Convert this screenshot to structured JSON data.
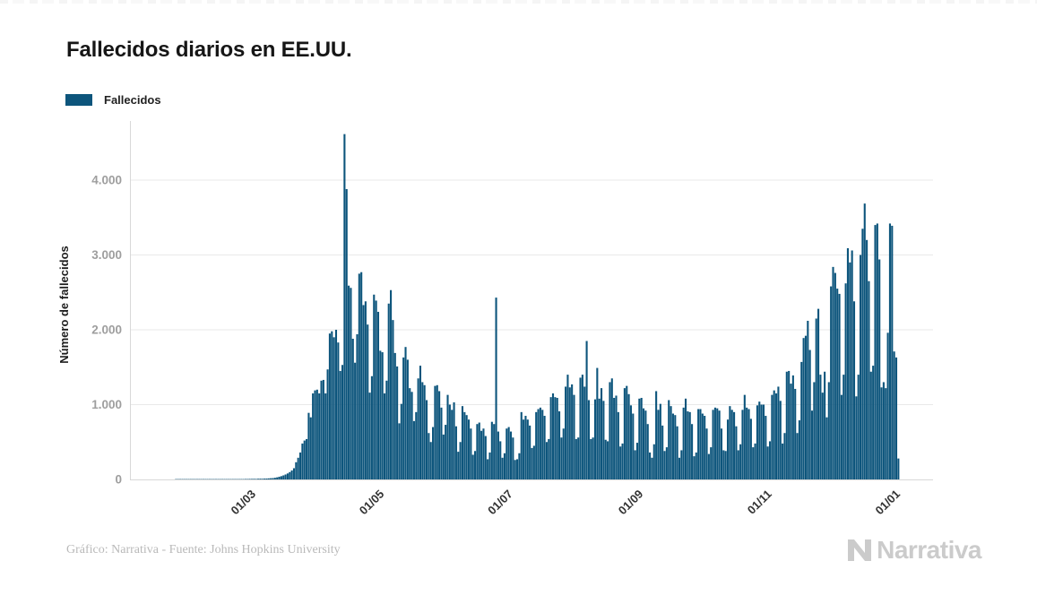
{
  "header": {
    "title": "Fallecidos diarios en EE.UU."
  },
  "legend": {
    "items": [
      {
        "label": "Fallecidos",
        "color": "#0d557c"
      }
    ]
  },
  "footer": {
    "credit": "Gráfico: Narrativa - Fuente: Johns Hopkins University",
    "logo_text": "Narrativa",
    "logo_icon": "narrativa-n-icon",
    "logo_color": "#cbcbcb"
  },
  "colors": {
    "bar": "#0d557c",
    "grid": "#e9e9e9",
    "axis": "#d8d8d8",
    "y_tick_label": "#9e9e9e",
    "x_tick_label": "#333333",
    "title": "#161616"
  },
  "chart_data": {
    "type": "bar",
    "title": "Fallecidos diarios en EE.UU.",
    "series_name": "Fallecidos",
    "bar_color": "#0d557c",
    "xlabel": "",
    "ylabel": "Número de fallecidos",
    "ylim": [
      0,
      4790
    ],
    "grid": true,
    "legend_position": "top-left",
    "y_ticks": [
      "0",
      "1.000",
      "2.000",
      "3.000",
      "4.000"
    ],
    "y_tick_values": [
      0,
      1000,
      2000,
      3000,
      4000
    ],
    "x_tick_labels": [
      "01/03",
      "01/05",
      "01/07",
      "01/09",
      "01/11",
      "01/01"
    ],
    "x_tick_day_index": [
      36,
      97,
      158,
      220,
      281,
      342
    ],
    "start_date": "2020-01-25",
    "values": [
      1,
      1,
      1,
      2,
      1,
      1,
      2,
      2,
      1,
      2,
      2,
      3,
      2,
      2,
      3,
      2,
      3,
      3,
      2,
      3,
      4,
      3,
      3,
      4,
      3,
      4,
      4,
      3,
      4,
      5,
      4,
      5,
      5,
      6,
      6,
      7,
      7,
      8,
      7,
      9,
      10,
      9,
      11,
      12,
      14,
      16,
      18,
      22,
      28,
      36,
      44,
      54,
      66,
      80,
      98,
      120,
      150,
      230,
      290,
      360,
      480,
      520,
      540,
      890,
      830,
      1150,
      1190,
      1200,
      1150,
      1320,
      1330,
      1150,
      1470,
      1950,
      1980,
      1900,
      2000,
      1830,
      1450,
      1530,
      4615,
      3880,
      2590,
      2560,
      1880,
      1560,
      1940,
      2750,
      2770,
      2330,
      2380,
      2070,
      1160,
      1380,
      2470,
      2390,
      2240,
      1720,
      1700,
      1150,
      1320,
      2350,
      2530,
      2130,
      1690,
      1510,
      750,
      1010,
      1630,
      1770,
      1600,
      1220,
      1170,
      780,
      900,
      1350,
      1520,
      1300,
      1260,
      1060,
      620,
      500,
      700,
      1250,
      1260,
      1180,
      960,
      600,
      730,
      1130,
      1000,
      930,
      1030,
      710,
      370,
      500,
      980,
      900,
      860,
      800,
      680,
      330,
      380,
      740,
      760,
      650,
      680,
      580,
      270,
      360,
      770,
      740,
      2430,
      640,
      510,
      290,
      350,
      680,
      700,
      640,
      560,
      260,
      270,
      350,
      900,
      800,
      850,
      800,
      720,
      420,
      450,
      900,
      940,
      960,
      930,
      850,
      500,
      540,
      1100,
      1150,
      1100,
      1090,
      910,
      560,
      680,
      1240,
      1400,
      1230,
      1270,
      1130,
      540,
      560,
      1360,
      1400,
      1240,
      1850,
      1060,
      540,
      560,
      1070,
      1490,
      1080,
      1220,
      1050,
      530,
      510,
      1300,
      1350,
      1090,
      1120,
      900,
      440,
      480,
      1220,
      1250,
      1140,
      990,
      880,
      390,
      490,
      1080,
      1090,
      950,
      920,
      740,
      360,
      290,
      470,
      1180,
      930,
      1010,
      720,
      380,
      430,
      1060,
      980,
      880,
      860,
      710,
      290,
      390,
      960,
      1080,
      910,
      900,
      740,
      310,
      360,
      940,
      940,
      880,
      850,
      680,
      340,
      430,
      930,
      960,
      950,
      920,
      680,
      390,
      380,
      800,
      980,
      930,
      900,
      710,
      390,
      470,
      930,
      1130,
      960,
      940,
      810,
      430,
      480,
      990,
      1040,
      1000,
      1000,
      850,
      440,
      510,
      1130,
      1190,
      1150,
      1240,
      1050,
      480,
      620,
      1440,
      1450,
      1280,
      1390,
      1210,
      620,
      790,
      1570,
      1890,
      1920,
      2120,
      1730,
      920,
      1300,
      2150,
      2280,
      1400,
      1160,
      1440,
      830,
      1300,
      2580,
      2840,
      2760,
      2550,
      2480,
      1130,
      1400,
      2620,
      3090,
      2900,
      3060,
      2380,
      1110,
      1400,
      3000,
      3350,
      3687,
      3200,
      2650,
      1440,
      1520,
      3400,
      3420,
      2940,
      1230,
      1300,
      1220,
      1960,
      3420,
      3390,
      1710,
      1630,
      280
    ]
  }
}
